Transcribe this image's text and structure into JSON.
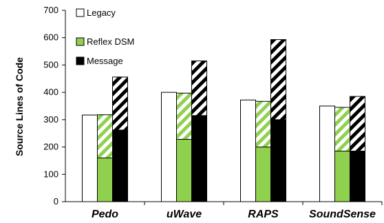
{
  "chart_data": {
    "type": "bar",
    "ylabel": "Source Lines of Code",
    "ylim": [
      0,
      700
    ],
    "yticks": [
      0,
      100,
      200,
      300,
      400,
      500,
      600,
      700
    ],
    "categories": [
      "Pedo",
      "uWave",
      "RAPS",
      "SoundSense"
    ],
    "legend": [
      "Legacy",
      "Reflex DSM",
      "Message"
    ],
    "legend_position": "top-left",
    "grid": false,
    "bars": {
      "Legacy": [
        317,
        400,
        372,
        350
      ],
      "Reflex DSM": {
        "solid": [
          160,
          228,
          200,
          185
        ],
        "total": [
          318,
          397,
          367,
          345
        ]
      },
      "Message": {
        "solid": [
          262,
          315,
          300,
          185
        ],
        "total": [
          456,
          515,
          593,
          385
        ]
      }
    },
    "colors": {
      "legacy_fill": "#ffffff",
      "reflex_fill": "#8fd14f",
      "message_fill": "#000000",
      "outline": "#000000"
    }
  }
}
